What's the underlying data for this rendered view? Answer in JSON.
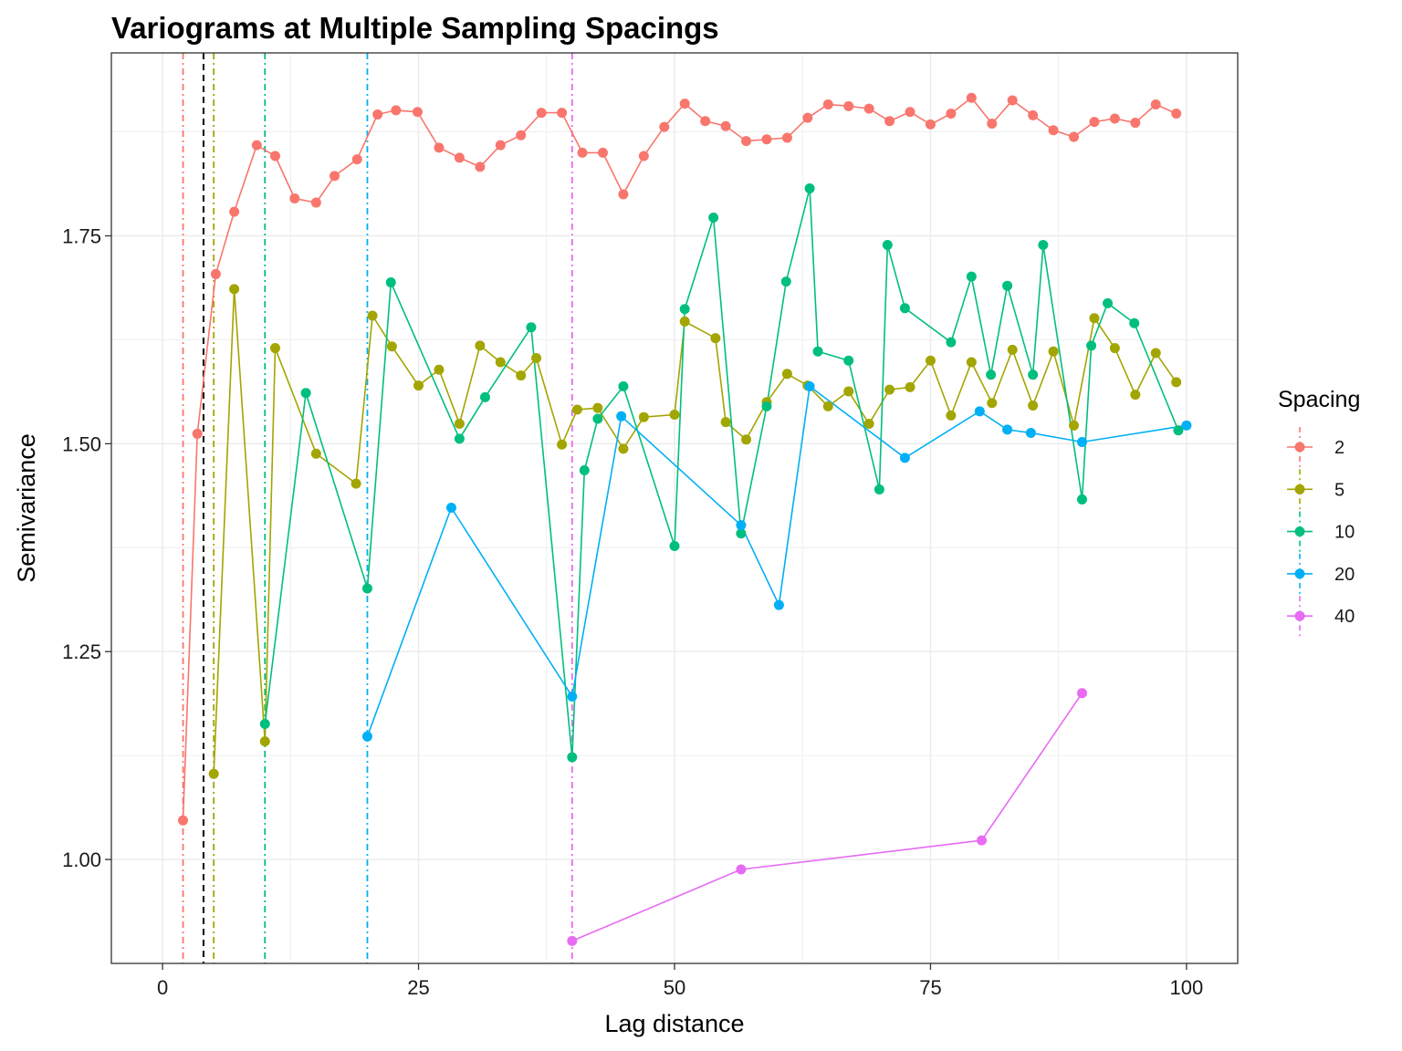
{
  "chart_data": {
    "type": "line",
    "title": "Variograms at Multiple Sampling Spacings",
    "xlabel": "Lag distance",
    "ylabel": "Semivariance",
    "xlim": [
      -5,
      105
    ],
    "ylim": [
      0.875,
      1.97
    ],
    "x_ticks": [
      0,
      25,
      50,
      75,
      100
    ],
    "x_tick_labels": [
      "0",
      "25",
      "50",
      "75",
      "100"
    ],
    "y_ticks": [
      1.0,
      1.25,
      1.5,
      1.75
    ],
    "y_tick_labels": [
      "1.00",
      "1.25",
      "1.50",
      "1.75"
    ],
    "grid": true,
    "legend": {
      "title": "Spacing",
      "position": "right"
    },
    "colors": {
      "2": "#F8766D",
      "5": "#A3A500",
      "10": "#00BF7D",
      "20": "#00B0F6",
      "40": "#E76BF3",
      "reference": "#000000"
    },
    "reference_line": {
      "x": 4,
      "style": "dashed"
    },
    "series": [
      {
        "name": "2",
        "color": "#F8766D",
        "vline": 2,
        "x": [
          2,
          3.4,
          5.2,
          7,
          9.2,
          11,
          12.9,
          15,
          16.8,
          19,
          21,
          22.8,
          24.9,
          27,
          29,
          31,
          33,
          35,
          37,
          39,
          41,
          43,
          45,
          47,
          49,
          51,
          53,
          55,
          57,
          59,
          61,
          63,
          65,
          67,
          69,
          71,
          73,
          75,
          77,
          79,
          81,
          83,
          85,
          87,
          89,
          91,
          93,
          95,
          97,
          99
        ],
        "values": [
          1.047,
          1.512,
          1.704,
          1.779,
          1.859,
          1.846,
          1.795,
          1.79,
          1.822,
          1.842,
          1.896,
          1.901,
          1.899,
          1.856,
          1.844,
          1.833,
          1.859,
          1.871,
          1.898,
          1.898,
          1.85,
          1.85,
          1.8,
          1.846,
          1.881,
          1.909,
          1.888,
          1.882,
          1.864,
          1.866,
          1.868,
          1.892,
          1.908,
          1.906,
          1.903,
          1.888,
          1.899,
          1.884,
          1.897,
          1.916,
          1.885,
          1.913,
          1.895,
          1.877,
          1.869,
          1.887,
          1.891,
          1.886,
          1.908,
          1.897
        ]
      },
      {
        "name": "5",
        "color": "#A3A500",
        "vline": 5,
        "x": [
          5,
          7,
          10,
          11,
          15,
          18.9,
          20.5,
          22.4,
          25,
          27,
          29,
          31,
          33,
          35,
          36.5,
          39,
          40.5,
          42.5,
          45,
          47,
          50,
          51,
          54,
          55,
          57,
          59,
          61,
          63,
          65,
          67,
          69,
          71,
          73,
          75,
          77,
          79,
          81,
          83,
          85,
          87,
          89,
          91,
          93,
          95,
          97,
          99
        ],
        "values": [
          1.103,
          1.686,
          1.142,
          1.615,
          1.488,
          1.452,
          1.654,
          1.617,
          1.57,
          1.589,
          1.524,
          1.618,
          1.598,
          1.582,
          1.603,
          1.499,
          1.541,
          1.543,
          1.494,
          1.532,
          1.535,
          1.647,
          1.627,
          1.526,
          1.505,
          1.55,
          1.584,
          1.57,
          1.545,
          1.563,
          1.524,
          1.565,
          1.568,
          1.6,
          1.534,
          1.598,
          1.549,
          1.613,
          1.546,
          1.611,
          1.522,
          1.651,
          1.615,
          1.559,
          1.609,
          1.574
        ]
      },
      {
        "name": "10",
        "color": "#00BF7D",
        "vline": 10,
        "x": [
          10,
          14,
          20,
          22.3,
          29,
          31.5,
          36,
          40,
          41.2,
          42.5,
          45,
          50,
          51,
          53.8,
          56.5,
          59,
          60.9,
          63.2,
          64,
          67,
          70,
          70.8,
          72.5,
          77,
          79,
          80.9,
          82.5,
          85,
          86,
          89.8,
          90.7,
          92.3,
          94.9,
          99.2
        ],
        "values": [
          1.163,
          1.561,
          1.326,
          1.694,
          1.506,
          1.556,
          1.64,
          1.123,
          1.468,
          1.53,
          1.569,
          1.377,
          1.662,
          1.772,
          1.392,
          1.545,
          1.695,
          1.807,
          1.611,
          1.6,
          1.445,
          1.739,
          1.663,
          1.622,
          1.701,
          1.583,
          1.69,
          1.583,
          1.739,
          1.433,
          1.618,
          1.669,
          1.645,
          1.516
        ]
      },
      {
        "name": "20",
        "color": "#00B0F6",
        "vline": 20,
        "x": [
          20,
          28.2,
          40,
          44.8,
          56.5,
          60.2,
          63.2,
          72.5,
          79.8,
          82.5,
          84.8,
          89.8,
          100
        ],
        "values": [
          1.148,
          1.423,
          1.196,
          1.533,
          1.402,
          1.306,
          1.569,
          1.483,
          1.539,
          1.517,
          1.513,
          1.502,
          1.522
        ]
      },
      {
        "name": "40",
        "color": "#E76BF3",
        "vline": 40,
        "x": [
          40,
          56.5,
          80,
          89.8
        ],
        "values": [
          0.902,
          0.988,
          1.023,
          1.2
        ]
      }
    ]
  }
}
